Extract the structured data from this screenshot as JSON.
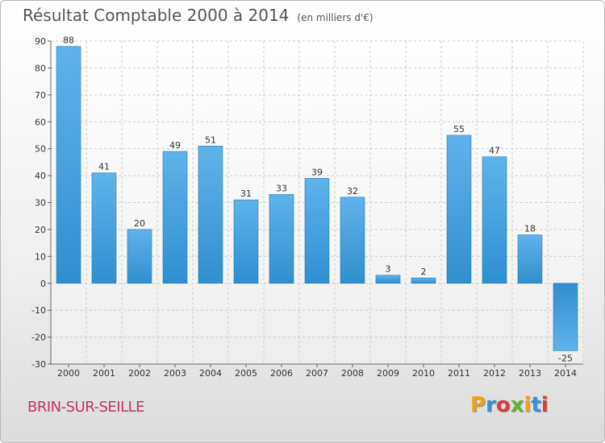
{
  "header": {
    "title": "Résultat Comptable 2000 à 2014",
    "unit": "(en milliers d'€)"
  },
  "footer": {
    "city": "BRIN-SUR-SEILLE",
    "logo": "Proxiti",
    "logo_colors": [
      "#e8a317",
      "#3a8fd6",
      "#d43f3f",
      "#5db33d",
      "#e8a317",
      "#3a8fd6",
      "#d43f3f"
    ]
  },
  "colors": {
    "bar": "#2f8fd0",
    "bar_light": "#5fb3ea",
    "grid": "#cccccc",
    "axis_text": "#333333"
  },
  "chart_data": {
    "type": "bar",
    "title": "Résultat Comptable 2000 à 2014",
    "subtitle": "(en milliers d'€)",
    "categories": [
      "2000",
      "2001",
      "2002",
      "2003",
      "2004",
      "2005",
      "2006",
      "2007",
      "2008",
      "2009",
      "2010",
      "2011",
      "2012",
      "2013",
      "2014"
    ],
    "values": [
      88,
      41,
      20,
      49,
      51,
      31,
      33,
      39,
      32,
      3,
      2,
      55,
      47,
      18,
      -25
    ],
    "ylim": [
      -30,
      90
    ],
    "yticks": [
      -30,
      -20,
      -10,
      0,
      10,
      20,
      30,
      40,
      50,
      60,
      70,
      80,
      90
    ],
    "grid": "horizontal-dashed",
    "legend": "none"
  }
}
